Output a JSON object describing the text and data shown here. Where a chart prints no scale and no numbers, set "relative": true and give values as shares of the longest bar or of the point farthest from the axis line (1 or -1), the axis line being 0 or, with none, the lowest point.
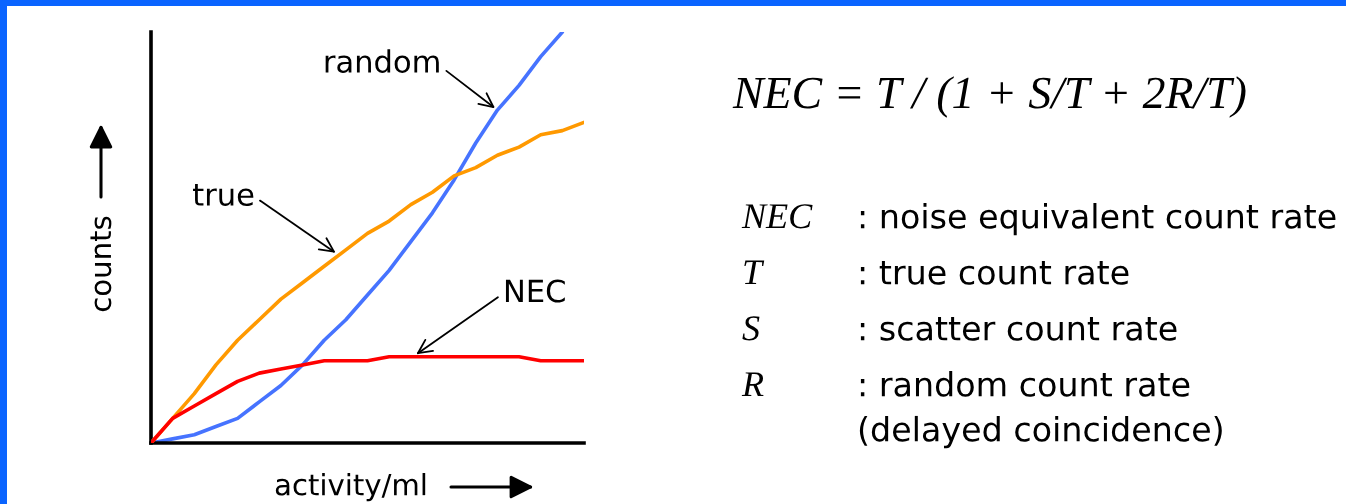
{
  "chart_data": [
    {
      "type": "line",
      "relative": true,
      "xlabel": "activity/ml",
      "ylabel": "counts",
      "categories": [
        null,
        null,
        null,
        null,
        null,
        null,
        null,
        null,
        null,
        null,
        null,
        null,
        null,
        null,
        null,
        null,
        null,
        null,
        null,
        null,
        null
      ],
      "series": [
        {
          "name": "random",
          "color": "#4673ff",
          "values": [
            0,
            0.01,
            0.02,
            0.04,
            0.06,
            0.1,
            0.14,
            0.19,
            0.25,
            0.3,
            0.36,
            0.42,
            0.49,
            0.56,
            0.64,
            0.73,
            0.81,
            0.87,
            0.94,
            1,
            null
          ]
        },
        {
          "name": "true",
          "color": "#ff9900",
          "values": [
            0,
            0.06,
            0.12,
            0.19,
            0.25,
            0.3,
            0.35,
            0.39,
            0.43,
            0.47,
            0.51,
            0.54,
            0.58,
            0.61,
            0.65,
            0.67,
            0.7,
            0.72,
            0.75,
            0.76,
            0.78
          ]
        },
        {
          "name": "NEC",
          "color": "#ff0000",
          "values": [
            0,
            0.06,
            0.09,
            0.12,
            0.15,
            0.17,
            0.18,
            0.19,
            0.2,
            0.2,
            0.2,
            0.21,
            0.21,
            0.21,
            0.21,
            0.21,
            0.21,
            0.21,
            0.2,
            0.2,
            0.2
          ]
        }
      ]
    },
    {
      "type": "other",
      "annotations": [
        "NEC = T / (1 + S/T + 2R/T)",
        "NEC",
        ": noise equivalent count rate",
        "T",
        ": true count rate",
        "S",
        ": scatter count rate",
        "R",
        ": random count rate\n(delayed coincidence)"
      ]
    }
  ]
}
